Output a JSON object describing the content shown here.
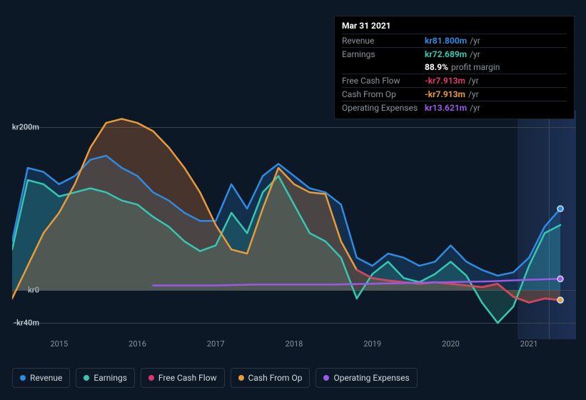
{
  "tooltip": {
    "date": "Mar 31 2021",
    "rows": [
      {
        "label": "Revenue",
        "value": "kr81.800m",
        "unit": "/yr",
        "color": "#2f8ae2"
      },
      {
        "label": "Earnings",
        "value": "kr72.689m",
        "unit": "/yr",
        "color": "#36c7b0"
      },
      {
        "label": "",
        "value": "88.9%",
        "unit": "profit margin",
        "color": "#ffffff",
        "noborder": true
      },
      {
        "label": "Free Cash Flow",
        "value": "-kr7.913m",
        "unit": "/yr",
        "color": "#e0356b"
      },
      {
        "label": "Cash From Op",
        "value": "-kr7.913m",
        "unit": "/yr",
        "color": "#e89b3a"
      },
      {
        "label": "Operating Expenses",
        "value": "kr13.621m",
        "unit": "/yr",
        "color": "#9b59e8"
      }
    ]
  },
  "chart": {
    "type": "area-line",
    "background": "#0d1826",
    "grid_color": "#3a4450",
    "x_range_years": [
      2014.4,
      2021.6
    ],
    "y_range": [
      -60,
      220
    ],
    "y_ticks": [
      {
        "v": 200,
        "label": "kr200m"
      },
      {
        "v": 0,
        "label": "kr0"
      },
      {
        "v": -40,
        "label": "-kr40m"
      }
    ],
    "x_ticks": [
      2015,
      2016,
      2017,
      2018,
      2019,
      2020,
      2021
    ],
    "future_start_year": 2020.85,
    "marker_year": 2021.25,
    "series": [
      {
        "name": "Revenue",
        "color": "#2f8ae2",
        "fill": "rgba(47,138,226,0.20)",
        "width": 2.5,
        "points": [
          [
            2014.4,
            60
          ],
          [
            2014.6,
            150
          ],
          [
            2014.8,
            145
          ],
          [
            2015.0,
            130
          ],
          [
            2015.2,
            140
          ],
          [
            2015.4,
            160
          ],
          [
            2015.6,
            165
          ],
          [
            2015.8,
            150
          ],
          [
            2016.0,
            140
          ],
          [
            2016.2,
            120
          ],
          [
            2016.4,
            110
          ],
          [
            2016.6,
            95
          ],
          [
            2016.8,
            85
          ],
          [
            2017.0,
            85
          ],
          [
            2017.2,
            130
          ],
          [
            2017.4,
            100
          ],
          [
            2017.6,
            140
          ],
          [
            2017.8,
            155
          ],
          [
            2018.0,
            140
          ],
          [
            2018.2,
            125
          ],
          [
            2018.4,
            120
          ],
          [
            2018.6,
            105
          ],
          [
            2018.8,
            40
          ],
          [
            2019.0,
            30
          ],
          [
            2019.2,
            45
          ],
          [
            2019.4,
            40
          ],
          [
            2019.6,
            30
          ],
          [
            2019.8,
            35
          ],
          [
            2020.0,
            55
          ],
          [
            2020.2,
            35
          ],
          [
            2020.4,
            25
          ],
          [
            2020.6,
            18
          ],
          [
            2020.8,
            22
          ],
          [
            2021.0,
            40
          ],
          [
            2021.2,
            78
          ],
          [
            2021.4,
            100
          ]
        ]
      },
      {
        "name": "Earnings",
        "color": "#36c7b0",
        "fill": "rgba(54,199,176,0.20)",
        "width": 2.5,
        "points": [
          [
            2014.4,
            50
          ],
          [
            2014.6,
            135
          ],
          [
            2014.8,
            130
          ],
          [
            2015.0,
            115
          ],
          [
            2015.2,
            120
          ],
          [
            2015.4,
            125
          ],
          [
            2015.6,
            120
          ],
          [
            2015.8,
            110
          ],
          [
            2016.0,
            105
          ],
          [
            2016.2,
            90
          ],
          [
            2016.4,
            78
          ],
          [
            2016.6,
            60
          ],
          [
            2016.8,
            48
          ],
          [
            2017.0,
            55
          ],
          [
            2017.2,
            95
          ],
          [
            2017.4,
            70
          ],
          [
            2017.6,
            120
          ],
          [
            2017.8,
            140
          ],
          [
            2018.0,
            105
          ],
          [
            2018.2,
            70
          ],
          [
            2018.4,
            60
          ],
          [
            2018.6,
            40
          ],
          [
            2018.8,
            -10
          ],
          [
            2019.0,
            20
          ],
          [
            2019.2,
            35
          ],
          [
            2019.4,
            15
          ],
          [
            2019.6,
            10
          ],
          [
            2019.8,
            20
          ],
          [
            2020.0,
            35
          ],
          [
            2020.2,
            18
          ],
          [
            2020.4,
            -15
          ],
          [
            2020.6,
            -40
          ],
          [
            2020.8,
            -20
          ],
          [
            2021.0,
            30
          ],
          [
            2021.2,
            70
          ],
          [
            2021.4,
            80
          ]
        ]
      },
      {
        "name": "Cash From Op",
        "color": "#e89b3a",
        "fill": "rgba(180,110,60,0.35)",
        "width": 2.5,
        "points": [
          [
            2014.4,
            -10
          ],
          [
            2014.6,
            30
          ],
          [
            2014.8,
            70
          ],
          [
            2015.0,
            95
          ],
          [
            2015.2,
            130
          ],
          [
            2015.4,
            175
          ],
          [
            2015.6,
            205
          ],
          [
            2015.8,
            210
          ],
          [
            2016.0,
            205
          ],
          [
            2016.2,
            195
          ],
          [
            2016.4,
            175
          ],
          [
            2016.6,
            150
          ],
          [
            2016.8,
            120
          ],
          [
            2017.0,
            80
          ],
          [
            2017.2,
            50
          ],
          [
            2017.4,
            45
          ],
          [
            2017.6,
            100
          ],
          [
            2017.8,
            150
          ],
          [
            2018.0,
            130
          ],
          [
            2018.2,
            120
          ],
          [
            2018.4,
            118
          ],
          [
            2018.6,
            60
          ],
          [
            2018.8,
            25
          ],
          [
            2019.0,
            15
          ],
          [
            2019.2,
            12
          ],
          [
            2019.4,
            10
          ],
          [
            2019.6,
            8
          ],
          [
            2019.8,
            10
          ],
          [
            2020.0,
            8
          ],
          [
            2020.2,
            6
          ],
          [
            2020.4,
            4
          ],
          [
            2020.6,
            8
          ],
          [
            2020.8,
            -8
          ],
          [
            2021.0,
            -15
          ],
          [
            2021.2,
            -10
          ],
          [
            2021.4,
            -12
          ]
        ]
      },
      {
        "name": "Free Cash Flow",
        "color": "#e0356b",
        "fill": "none",
        "width": 2,
        "points": [
          [
            2018.8,
            25
          ],
          [
            2019.0,
            15
          ],
          [
            2019.2,
            12
          ],
          [
            2019.4,
            10
          ],
          [
            2019.6,
            8
          ],
          [
            2019.8,
            10
          ],
          [
            2020.0,
            8
          ],
          [
            2020.2,
            6
          ],
          [
            2020.4,
            4
          ],
          [
            2020.6,
            8
          ],
          [
            2020.8,
            -8
          ],
          [
            2021.0,
            -15
          ],
          [
            2021.2,
            -10
          ],
          [
            2021.4,
            -12
          ]
        ]
      },
      {
        "name": "Operating Expenses",
        "color": "#9b59e8",
        "fill": "none",
        "width": 2.5,
        "points": [
          [
            2016.2,
            6
          ],
          [
            2016.5,
            6
          ],
          [
            2017.0,
            6
          ],
          [
            2017.5,
            7
          ],
          [
            2018.0,
            7
          ],
          [
            2018.5,
            7
          ],
          [
            2019.0,
            8
          ],
          [
            2019.5,
            9
          ],
          [
            2020.0,
            10
          ],
          [
            2020.5,
            11
          ],
          [
            2021.0,
            13
          ],
          [
            2021.4,
            14
          ]
        ]
      }
    ],
    "legend": [
      {
        "label": "Revenue",
        "color": "#2f8ae2"
      },
      {
        "label": "Earnings",
        "color": "#36c7b0"
      },
      {
        "label": "Free Cash Flow",
        "color": "#e0356b"
      },
      {
        "label": "Cash From Op",
        "color": "#e89b3a"
      },
      {
        "label": "Operating Expenses",
        "color": "#9b59e8"
      }
    ]
  }
}
